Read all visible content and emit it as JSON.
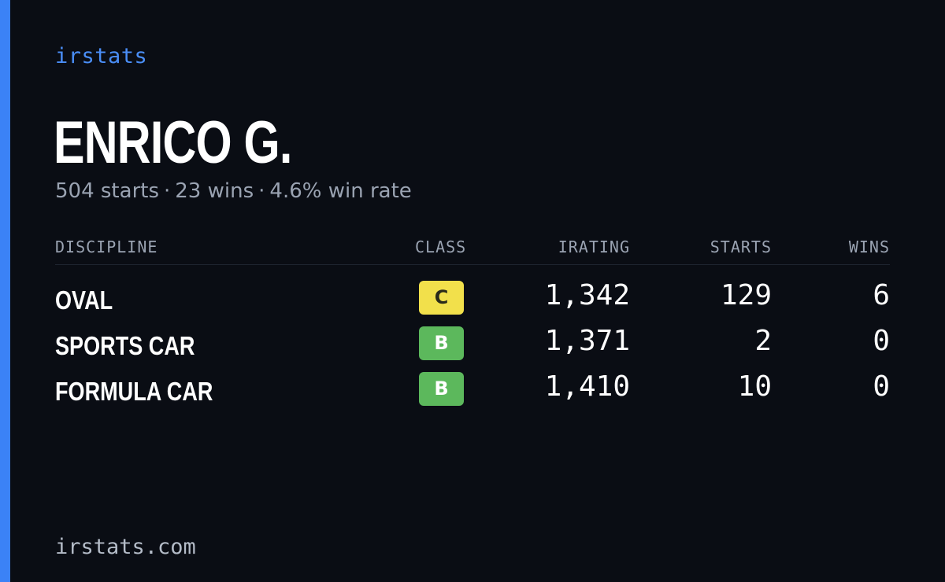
{
  "brand": "irstats",
  "player": {
    "name": "ENRICO G.",
    "starts_text": "504 starts",
    "wins_text": "23 wins",
    "win_rate_text": "4.6% win rate",
    "separator": "·"
  },
  "table": {
    "headers": {
      "discipline": "DISCIPLINE",
      "class": "CLASS",
      "irating": "IRATING",
      "starts": "STARTS",
      "wins": "WINS"
    },
    "rows": [
      {
        "discipline": "OVAL",
        "class": "C",
        "class_color": "#f2e04b",
        "class_text_color": "#2a2a1a",
        "irating": "1,342",
        "starts": "129",
        "wins": "6"
      },
      {
        "discipline": "SPORTS CAR",
        "class": "B",
        "class_color": "#5cb85c",
        "class_text_color": "#ffffff",
        "irating": "1,371",
        "starts": "2",
        "wins": "0"
      },
      {
        "discipline": "FORMULA CAR",
        "class": "B",
        "class_color": "#5cb85c",
        "class_text_color": "#ffffff",
        "irating": "1,410",
        "starts": "10",
        "wins": "0"
      }
    ]
  },
  "footer": {
    "url": "irstats.com"
  },
  "colors": {
    "accent": "#3b82f6",
    "background": "#0a0d14"
  }
}
